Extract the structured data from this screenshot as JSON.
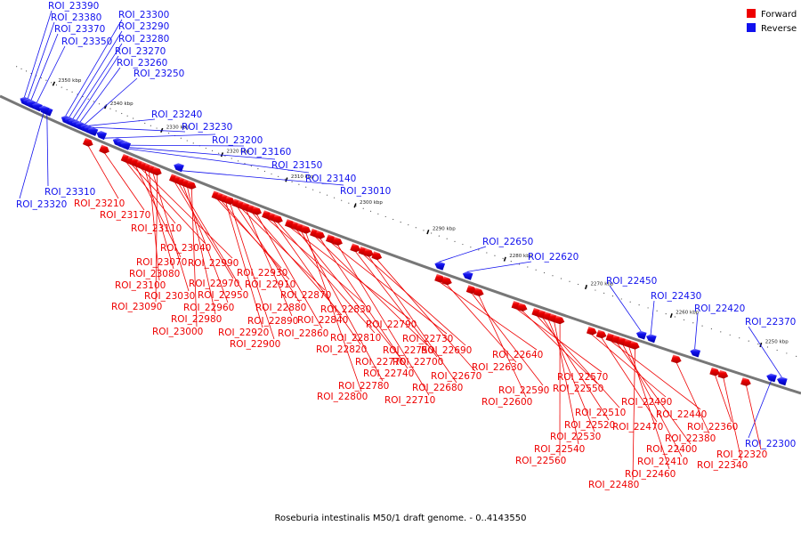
{
  "caption": "Roseburia intestinalis M50/1 draft genome. - 0..4143550",
  "colors": {
    "forward": "#ee0000",
    "reverse": "#1111ee",
    "axis": "#777777"
  },
  "legend": [
    {
      "label": "Forward",
      "strand": "forward"
    },
    {
      "label": "Reverse",
      "strand": "reverse"
    }
  ],
  "ticks": [
    {
      "label": "2350 kbp",
      "t": 0.072
    },
    {
      "label": "2340 kbp",
      "t": 0.16
    },
    {
      "label": "2330 kbp",
      "t": 0.248
    },
    {
      "label": "2320 kbp",
      "t": 0.336
    },
    {
      "label": "2310 kbp",
      "t": 0.424
    },
    {
      "label": "2300 kbp",
      "t": 0.512
    },
    {
      "label": "2290 kbp",
      "t": 0.6
    },
    {
      "label": "2280 kbp",
      "t": 0.688
    },
    {
      "label": "2270 kbp",
      "t": 0.776
    },
    {
      "label": "2260 kbp",
      "t": 0.864
    },
    {
      "label": "2250 kbp",
      "t": 0.952
    }
  ],
  "reverse_features": [
    {
      "label": "ROI_23390",
      "t": 0.04
    },
    {
      "label": "ROI_23380",
      "t": 0.046
    },
    {
      "label": "ROI_23370",
      "t": 0.052
    },
    {
      "label": "ROI_23350",
      "t": 0.062
    },
    {
      "label": "ROI_23300",
      "t": 0.112
    },
    {
      "label": "ROI_23290",
      "t": 0.118
    },
    {
      "label": "ROI_23280",
      "t": 0.124
    },
    {
      "label": "ROI_23270",
      "t": 0.13
    },
    {
      "label": "ROI_23260",
      "t": 0.136
    },
    {
      "label": "ROI_23250",
      "t": 0.144
    },
    {
      "label": "ROI_23240",
      "t": 0.15
    },
    {
      "label": "ROI_23230",
      "t": 0.156
    },
    {
      "label": "ROI_23200",
      "t": 0.17
    },
    {
      "label": "ROI_23160",
      "t": 0.196
    },
    {
      "label": "ROI_23150",
      "t": 0.202
    },
    {
      "label": "ROI_23140",
      "t": 0.208
    },
    {
      "label": "ROI_23010",
      "t": 0.288
    },
    {
      "label": "ROI_23310",
      "t": 0.08
    },
    {
      "label": "ROI_23320",
      "t": 0.074
    },
    {
      "label": "ROI_22650",
      "t": 0.624
    },
    {
      "label": "ROI_22620",
      "t": 0.656
    },
    {
      "label": "ROI_22450",
      "t": 0.842
    },
    {
      "label": "ROI_22430",
      "t": 0.852
    },
    {
      "label": "ROI_22420",
      "t": 0.896
    },
    {
      "label": "ROI_22370",
      "t": 0.98
    },
    {
      "label": "ROI_22300",
      "t": 0.97
    }
  ],
  "forward_features": [
    {
      "label": "ROI_23210",
      "t": 0.158
    },
    {
      "label": "ROI_23170",
      "t": 0.184
    },
    {
      "label": "ROI_23110",
      "t": 0.218
    },
    {
      "label": "ROI_23040",
      "t": 0.226
    },
    {
      "label": "ROI_23070",
      "t": 0.232
    },
    {
      "label": "ROI_22990",
      "t": 0.24
    },
    {
      "label": "ROI_23080",
      "t": 0.246
    },
    {
      "label": "ROI_23100",
      "t": 0.252
    },
    {
      "label": "ROI_23030",
      "t": 0.258
    },
    {
      "label": "ROI_23090",
      "t": 0.264
    },
    {
      "label": "ROI_22970",
      "t": 0.29
    },
    {
      "label": "ROI_22950",
      "t": 0.296
    },
    {
      "label": "ROI_22960",
      "t": 0.302
    },
    {
      "label": "ROI_22980",
      "t": 0.308
    },
    {
      "label": "ROI_23000",
      "t": 0.314
    },
    {
      "label": "ROI_22930",
      "t": 0.35
    },
    {
      "label": "ROI_22910",
      "t": 0.356
    },
    {
      "label": "ROI_22920",
      "t": 0.362
    },
    {
      "label": "ROI_22900",
      "t": 0.368
    },
    {
      "label": "ROI_22880",
      "t": 0.378
    },
    {
      "label": "ROI_22870",
      "t": 0.384
    },
    {
      "label": "ROI_22890",
      "t": 0.39
    },
    {
      "label": "ROI_22840",
      "t": 0.398
    },
    {
      "label": "ROI_22860",
      "t": 0.404
    },
    {
      "label": "ROI_22830",
      "t": 0.418
    },
    {
      "label": "ROI_22820",
      "t": 0.426
    },
    {
      "label": "ROI_22810",
      "t": 0.432
    },
    {
      "label": "ROI_22790",
      "t": 0.448
    },
    {
      "label": "ROI_22770",
      "t": 0.456
    },
    {
      "label": "ROI_22780",
      "t": 0.462
    },
    {
      "label": "ROI_22800",
      "t": 0.468
    },
    {
      "label": "ROI_22750",
      "t": 0.48
    },
    {
      "label": "ROI_22740",
      "t": 0.486
    },
    {
      "label": "ROI_22730",
      "t": 0.5
    },
    {
      "label": "ROI_22710",
      "t": 0.508
    },
    {
      "label": "ROI_22700",
      "t": 0.53
    },
    {
      "label": "ROI_22690",
      "t": 0.54
    },
    {
      "label": "ROI_22680",
      "t": 0.546
    },
    {
      "label": "ROI_22670",
      "t": 0.556
    },
    {
      "label": "ROI_22640",
      "t": 0.63
    },
    {
      "label": "ROI_22630",
      "t": 0.638
    },
    {
      "label": "ROI_22590",
      "t": 0.666
    },
    {
      "label": "ROI_22600",
      "t": 0.674
    },
    {
      "label": "ROI_22570",
      "t": 0.716
    },
    {
      "label": "ROI_22550",
      "t": 0.722
    },
    {
      "label": "ROI_22510",
      "t": 0.738
    },
    {
      "label": "ROI_22520",
      "t": 0.744
    },
    {
      "label": "ROI_22530",
      "t": 0.75
    },
    {
      "label": "ROI_22540",
      "t": 0.756
    },
    {
      "label": "ROI_22560",
      "t": 0.762
    },
    {
      "label": "ROI_22490",
      "t": 0.796
    },
    {
      "label": "ROI_22470",
      "t": 0.806
    },
    {
      "label": "ROI_22440",
      "t": 0.816
    },
    {
      "label": "ROI_22400",
      "t": 0.822
    },
    {
      "label": "ROI_22410",
      "t": 0.828
    },
    {
      "label": "ROI_22460",
      "t": 0.834
    },
    {
      "label": "ROI_22480",
      "t": 0.84
    },
    {
      "label": "ROI_22380",
      "t": 0.882
    },
    {
      "label": "ROI_22360",
      "t": 0.92
    },
    {
      "label": "ROI_22340",
      "t": 0.928
    },
    {
      "label": "ROI_22320",
      "t": 0.95
    }
  ]
}
